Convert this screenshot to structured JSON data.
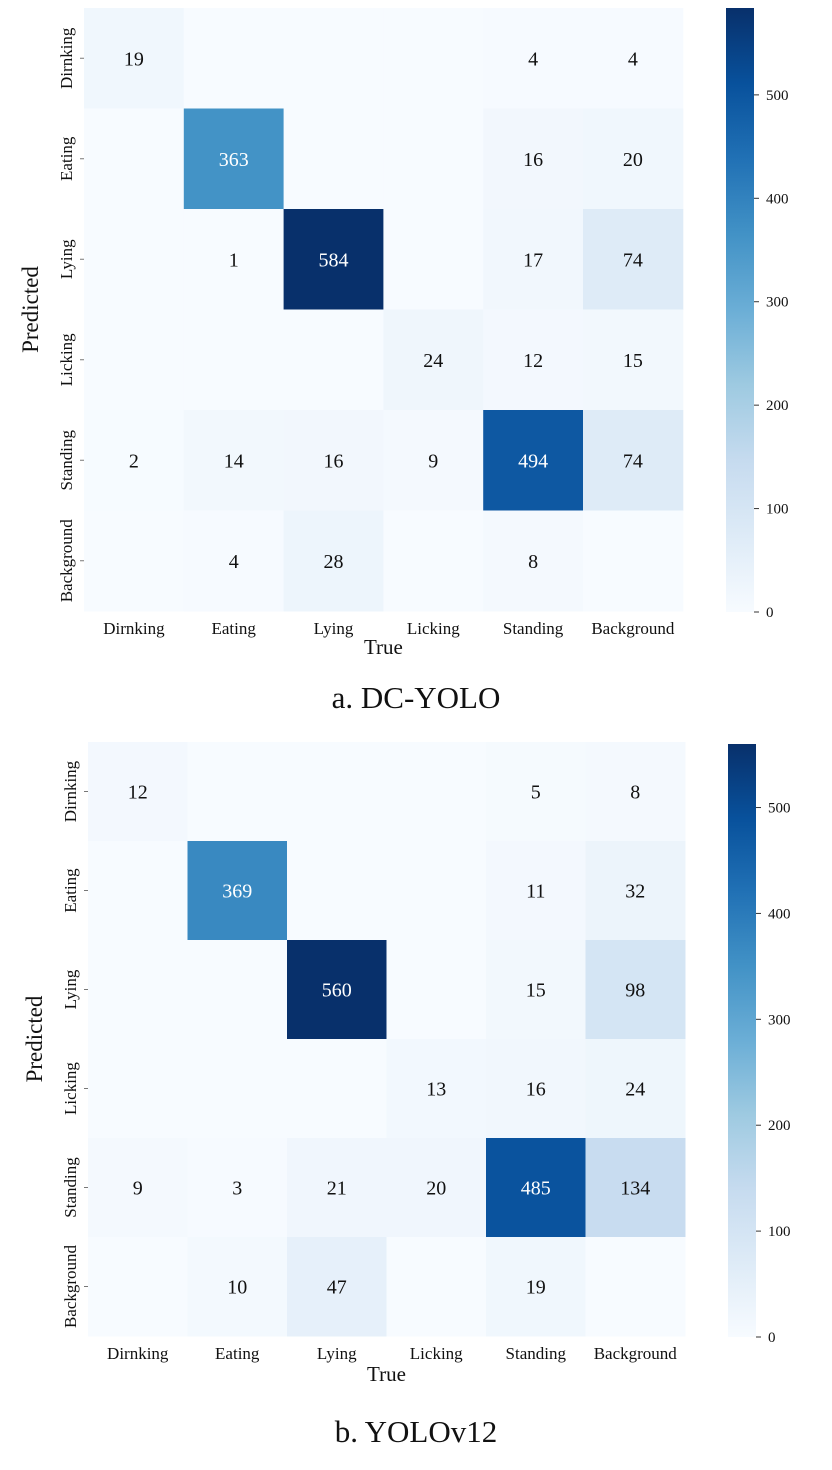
{
  "chart_data": [
    {
      "type": "heatmap",
      "caption": "a. DC-YOLO",
      "xlabel": "True",
      "ylabel": "Predicted",
      "x_categories": [
        "Dirnking",
        "Eating",
        "Lying",
        "Licking",
        "Standing",
        "Background"
      ],
      "y_categories": [
        "Dirnking",
        "Eating",
        "Lying",
        "Licking",
        "Standing",
        "Background"
      ],
      "values": [
        [
          19,
          0,
          0,
          0,
          4,
          4
        ],
        [
          0,
          363,
          0,
          0,
          16,
          20
        ],
        [
          0,
          1,
          584,
          0,
          17,
          74
        ],
        [
          0,
          0,
          0,
          24,
          12,
          15
        ],
        [
          2,
          14,
          16,
          9,
          494,
          74
        ],
        [
          0,
          4,
          28,
          0,
          8,
          0
        ]
      ],
      "colorbar_range": [
        0,
        584
      ],
      "colorbar_ticks": [
        0,
        100,
        200,
        300,
        400,
        500
      ],
      "colormap": "Blues"
    },
    {
      "type": "heatmap",
      "caption": "b. YOLOv12",
      "xlabel": "True",
      "ylabel": "Predicted",
      "x_categories": [
        "Dirnking",
        "Eating",
        "Lying",
        "Licking",
        "Standing",
        "Background"
      ],
      "y_categories": [
        "Dirnking",
        "Eating",
        "Lying",
        "Licking",
        "Standing",
        "Background"
      ],
      "values": [
        [
          12,
          0,
          0,
          0,
          5,
          8
        ],
        [
          0,
          369,
          0,
          0,
          11,
          32
        ],
        [
          0,
          0,
          560,
          0,
          15,
          98
        ],
        [
          0,
          0,
          0,
          13,
          16,
          24
        ],
        [
          9,
          3,
          21,
          20,
          485,
          134
        ],
        [
          0,
          10,
          47,
          0,
          19,
          0
        ]
      ],
      "colorbar_range": [
        0,
        560
      ],
      "colorbar_ticks": [
        0,
        100,
        200,
        300,
        400,
        500
      ],
      "colormap": "Blues"
    }
  ]
}
